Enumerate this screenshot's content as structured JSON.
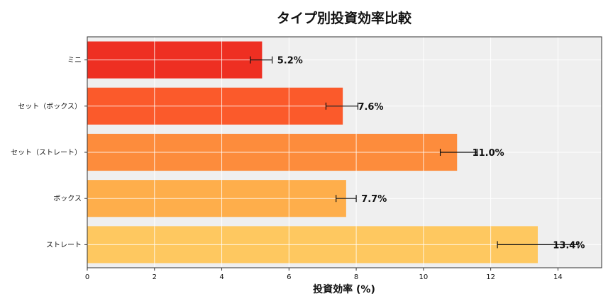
{
  "chart_data": {
    "type": "bar",
    "orientation": "horizontal",
    "title": "タイプ別投資効率比較",
    "xlabel": "投資効率 (%)",
    "ylabel": "",
    "xlim": [
      0,
      15.3
    ],
    "x_ticks": [
      0,
      2,
      4,
      6,
      8,
      10,
      12,
      14
    ],
    "grid": true,
    "categories": [
      "ミニ",
      "セット（ボックス）",
      "セット（ストレート）",
      "ボックス",
      "ストレート"
    ],
    "values": [
      5.2,
      7.6,
      11.0,
      7.7,
      13.4
    ],
    "value_labels": [
      "5.2%",
      "7.6%",
      "11.0%",
      "7.7%",
      "13.4%"
    ],
    "error_low": [
      4.85,
      7.1,
      10.5,
      7.4,
      12.2
    ],
    "error_high": [
      5.5,
      8.05,
      11.6,
      8.0,
      14.6
    ],
    "colors": [
      "#ee2f22",
      "#fb5a2b",
      "#fd8c3c",
      "#feae4b",
      "#fec860"
    ],
    "background_color": "#efefef"
  }
}
